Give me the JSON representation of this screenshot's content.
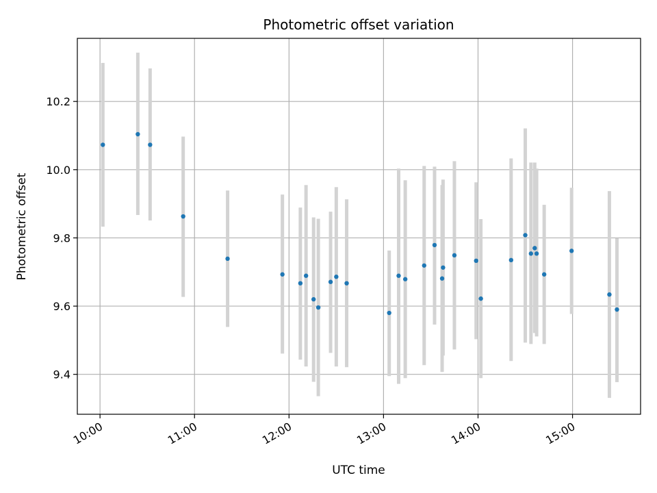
{
  "chart_data": {
    "type": "scatter",
    "title": "Photometric offset variation",
    "xlabel": "UTC time",
    "ylabel": "Photometric offset",
    "x_unit": "hours (UTC)",
    "xlim": [
      9.76,
      15.72
    ],
    "ylim": [
      9.283,
      10.385
    ],
    "x_ticks": [
      10,
      11,
      12,
      13,
      14,
      15
    ],
    "x_tick_labels": [
      "10:00",
      "11:00",
      "12:00",
      "13:00",
      "14:00",
      "15:00"
    ],
    "y_ticks": [
      9.4,
      9.6,
      9.8,
      10.0,
      10.2
    ],
    "y_tick_labels": [
      "9.4",
      "9.6",
      "9.8",
      "10.0",
      "10.2"
    ],
    "grid": true,
    "marker_color": "#1f77b4",
    "errorbar_color": "#d3d3d3",
    "points": [
      {
        "x": 10.03,
        "y": 10.073,
        "lo": 9.833,
        "hi": 10.313
      },
      {
        "x": 10.4,
        "y": 10.104,
        "lo": 9.867,
        "hi": 10.343
      },
      {
        "x": 10.53,
        "y": 10.073,
        "lo": 9.851,
        "hi": 10.297
      },
      {
        "x": 10.88,
        "y": 9.863,
        "lo": 9.627,
        "hi": 10.097
      },
      {
        "x": 11.35,
        "y": 9.739,
        "lo": 9.539,
        "hi": 9.939
      },
      {
        "x": 11.93,
        "y": 9.693,
        "lo": 9.461,
        "hi": 9.927
      },
      {
        "x": 12.12,
        "y": 9.667,
        "lo": 9.443,
        "hi": 9.889
      },
      {
        "x": 12.18,
        "y": 9.689,
        "lo": 9.423,
        "hi": 9.955
      },
      {
        "x": 12.26,
        "y": 9.62,
        "lo": 9.378,
        "hi": 9.86
      },
      {
        "x": 12.31,
        "y": 9.596,
        "lo": 9.336,
        "hi": 9.856
      },
      {
        "x": 12.44,
        "y": 9.671,
        "lo": 9.463,
        "hi": 9.877
      },
      {
        "x": 12.5,
        "y": 9.686,
        "lo": 9.423,
        "hi": 9.949
      },
      {
        "x": 12.61,
        "y": 9.667,
        "lo": 9.421,
        "hi": 9.913
      },
      {
        "x": 13.06,
        "y": 9.58,
        "lo": 9.395,
        "hi": 9.763
      },
      {
        "x": 13.16,
        "y": 9.689,
        "lo": 9.372,
        "hi": 10.003
      },
      {
        "x": 13.23,
        "y": 9.679,
        "lo": 9.389,
        "hi": 9.969
      },
      {
        "x": 13.43,
        "y": 9.719,
        "lo": 9.427,
        "hi": 10.011
      },
      {
        "x": 13.54,
        "y": 9.779,
        "lo": 9.546,
        "hi": 10.009
      },
      {
        "x": 13.62,
        "y": 9.681,
        "lo": 9.407,
        "hi": 9.955
      },
      {
        "x": 13.63,
        "y": 9.713,
        "lo": 9.455,
        "hi": 9.971
      },
      {
        "x": 13.75,
        "y": 9.749,
        "lo": 9.473,
        "hi": 10.025
      },
      {
        "x": 13.98,
        "y": 9.733,
        "lo": 9.503,
        "hi": 9.963
      },
      {
        "x": 14.03,
        "y": 9.622,
        "lo": 9.389,
        "hi": 9.855
      },
      {
        "x": 14.35,
        "y": 9.735,
        "lo": 9.439,
        "hi": 10.033
      },
      {
        "x": 14.5,
        "y": 9.808,
        "lo": 9.493,
        "hi": 10.121
      },
      {
        "x": 14.56,
        "y": 9.754,
        "lo": 9.489,
        "hi": 10.021
      },
      {
        "x": 14.6,
        "y": 9.77,
        "lo": 9.521,
        "hi": 10.021
      },
      {
        "x": 14.62,
        "y": 9.754,
        "lo": 9.511,
        "hi": 10.003
      },
      {
        "x": 14.7,
        "y": 9.693,
        "lo": 9.489,
        "hi": 9.897
      },
      {
        "x": 14.99,
        "y": 9.762,
        "lo": 9.577,
        "hi": 9.947
      },
      {
        "x": 15.39,
        "y": 9.634,
        "lo": 9.331,
        "hi": 9.937
      },
      {
        "x": 15.47,
        "y": 9.59,
        "lo": 9.377,
        "hi": 9.799
      }
    ]
  }
}
